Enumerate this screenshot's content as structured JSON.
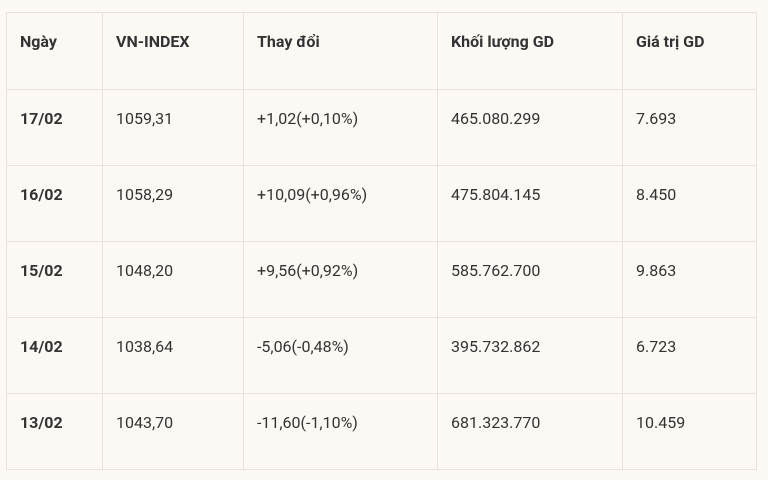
{
  "table": {
    "header": [
      "Ngày",
      "VN-INDEX",
      "Thay đổi",
      "Khối lượng GD",
      "Giá trị GD"
    ],
    "rows": [
      [
        "17/02",
        "1059,31",
        "+1,02(+0,10%)",
        "465.080.299",
        "7.693"
      ],
      [
        "16/02",
        "1058,29",
        "+10,09(+0,96%)",
        "475.804.145",
        "8.450"
      ],
      [
        "15/02",
        "1048,20",
        "+9,56(+0,92%)",
        "585.762.700",
        "9.863"
      ],
      [
        "14/02",
        "1038,64",
        "-5,06(-0,48%)",
        "395.732.862",
        "6.723"
      ],
      [
        "13/02",
        "1043,70",
        "-11,60(-1,10%)",
        "681.323.770",
        "10.459"
      ]
    ]
  }
}
